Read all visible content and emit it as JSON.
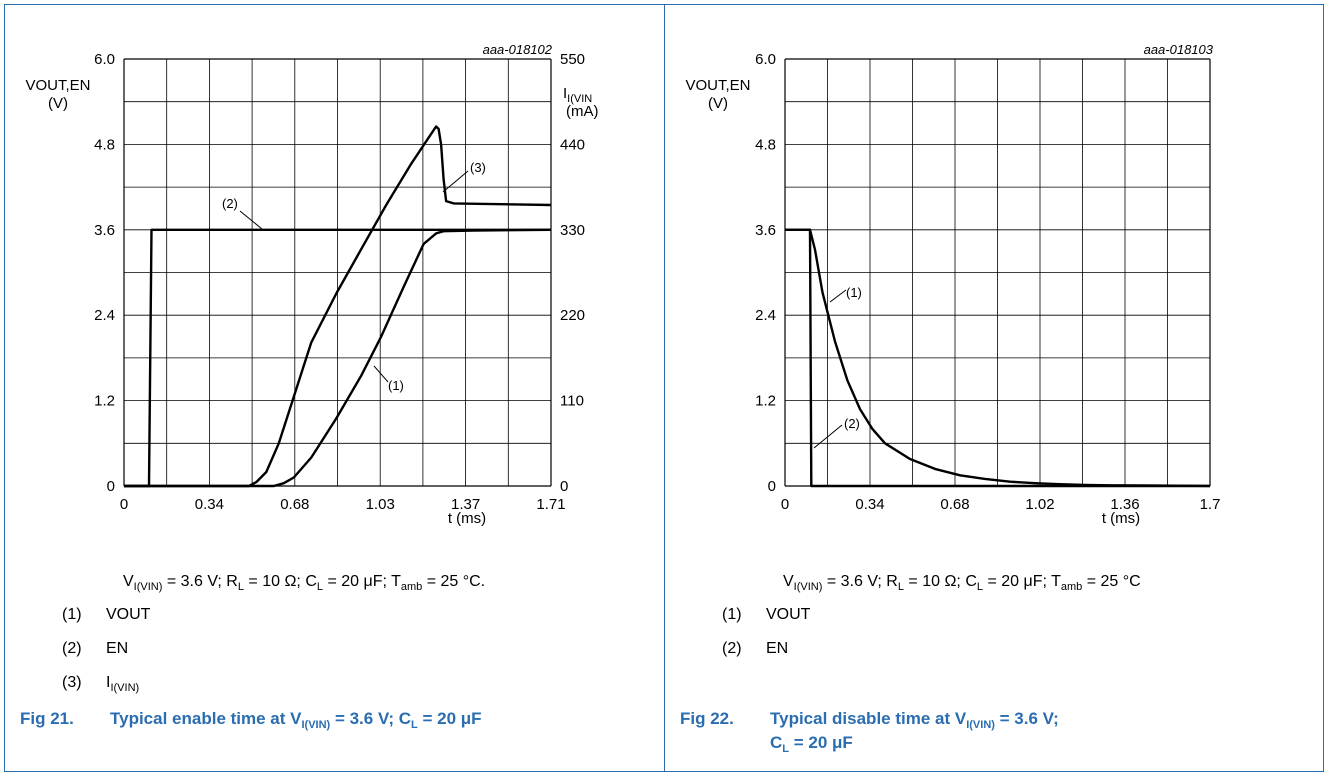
{
  "fig21": {
    "code": "aaa-018102",
    "y_left_label_1": "VOUT,EN",
    "y_left_label_2": "(V)",
    "y_right_label_main": "I",
    "y_right_label_sub": "I(VIN",
    "y_right_unit": "(mA)",
    "x_label": "t (ms)",
    "conditions": {
      "v_main": "V",
      "v_sub": "I(VIN)",
      "v_eq": " = 3.6 V; R",
      "r_sub": "L",
      "r_eq": " = 10 Ω; C",
      "c_sub": "L",
      "c_eq": " = 20 μF; T",
      "t_sub": "amb",
      "t_eq": " = 25 °C."
    },
    "legend": [
      {
        "num": "(1)",
        "label": "VOUT"
      },
      {
        "num": "(2)",
        "label": "EN"
      },
      {
        "num": "(3)",
        "label_main": "I",
        "label_sub": "I(VIN)"
      }
    ],
    "caption": {
      "fig": "Fig 21.",
      "text_1": "Typical enable time at V",
      "sub_1": "I(VIN)",
      "text_2": " = 3.6 V; C",
      "sub_2": "L",
      "text_3": " = 20 μF"
    }
  },
  "fig22": {
    "code": "aaa-018103",
    "y_left_label_1": "VOUT,EN",
    "y_left_label_2": "(V)",
    "x_label": "t (ms)",
    "conditions": {
      "v_main": "V",
      "v_sub": "I(VIN)",
      "v_eq": " = 3.6 V; R",
      "r_sub": "L",
      "r_eq": " = 10 Ω; C",
      "c_sub": "L",
      "c_eq": " = 20 μF; T",
      "t_sub": "amb",
      "t_eq": " = 25 °C"
    },
    "legend": [
      {
        "num": "(1)",
        "label": "VOUT"
      },
      {
        "num": "(2)",
        "label": "EN"
      }
    ],
    "caption": {
      "fig": "Fig 22.",
      "text_1": "Typical disable time at V",
      "sub_1": "I(VIN)",
      "text_2": " = 3.6 V;",
      "text_3": "C",
      "sub_2": "L",
      "text_4": " = 20 μF"
    }
  },
  "colors": {
    "accent": "#2a6db0",
    "trace": "#000000",
    "grid": "#000000"
  },
  "chart_data": [
    {
      "type": "line",
      "x_ticks": [
        "0",
        "0.34",
        "0.68",
        "1.03",
        "1.37",
        "1.71"
      ],
      "y_ticks": [
        "0",
        "1.2",
        "2.4",
        "3.6",
        "4.8",
        "6.0"
      ],
      "y2_ticks": [
        "0",
        "110",
        "220",
        "330",
        "440",
        "550"
      ],
      "xlim": [
        0,
        1.71
      ],
      "ylim": [
        0,
        6.0
      ],
      "y2lim": [
        0,
        550
      ],
      "xlabel": "t (ms)",
      "ylabel": "VOUT,EN (V)",
      "y2label": "II(VIN (mA)",
      "grid": true,
      "series": [
        {
          "name": "(1)",
          "axis": "left",
          "x": [
            0,
            0.6,
            0.64,
            0.68,
            0.75,
            0.85,
            0.95,
            1.03,
            1.12,
            1.2,
            1.25,
            1.28,
            1.4,
            1.71
          ],
          "y": [
            0,
            0,
            0.04,
            0.12,
            0.4,
            0.95,
            1.55,
            2.1,
            2.8,
            3.4,
            3.55,
            3.58,
            3.59,
            3.6
          ]
        },
        {
          "name": "(2)",
          "axis": "left",
          "x": [
            0,
            0.1,
            0.11,
            1.71
          ],
          "y": [
            0,
            0,
            3.6,
            3.6
          ]
        },
        {
          "name": "(3)",
          "axis": "right",
          "x": [
            0,
            0.5,
            0.53,
            0.57,
            0.62,
            0.68,
            0.75,
            0.85,
            0.95,
            1.05,
            1.15,
            1.25,
            1.26,
            1.27,
            1.28,
            1.29,
            1.32,
            1.71
          ],
          "y": [
            0,
            0,
            5,
            18,
            55,
            115,
            185,
            248,
            305,
            362,
            415,
            463,
            460,
            440,
            395,
            367,
            364,
            362
          ]
        }
      ],
      "annotations": [
        "(1)",
        "(2)",
        "(3)"
      ]
    },
    {
      "type": "line",
      "x_ticks": [
        "0",
        "0.34",
        "0.68",
        "1.02",
        "1.36",
        "1.7"
      ],
      "y_ticks": [
        "0",
        "1.2",
        "2.4",
        "3.6",
        "4.8",
        "6.0"
      ],
      "xlim": [
        0,
        1.7
      ],
      "ylim": [
        0,
        6.0
      ],
      "xlabel": "t (ms)",
      "ylabel": "VOUT,EN (V)",
      "grid": true,
      "series": [
        {
          "name": "(1)",
          "axis": "left",
          "x": [
            0,
            0.1,
            0.12,
            0.15,
            0.2,
            0.25,
            0.3,
            0.35,
            0.4,
            0.5,
            0.6,
            0.7,
            0.8,
            0.9,
            1.0,
            1.1,
            1.2,
            1.3,
            1.5,
            1.7
          ],
          "y": [
            3.6,
            3.6,
            3.32,
            2.72,
            2.03,
            1.48,
            1.08,
            0.8,
            0.6,
            0.38,
            0.24,
            0.15,
            0.1,
            0.06,
            0.04,
            0.025,
            0.015,
            0.01,
            0.005,
            0.002
          ]
        },
        {
          "name": "(2)",
          "axis": "left",
          "x": [
            0,
            0.1,
            0.105,
            1.7
          ],
          "y": [
            3.6,
            3.6,
            0,
            0
          ]
        }
      ],
      "annotations": [
        "(1)",
        "(2)"
      ]
    }
  ]
}
